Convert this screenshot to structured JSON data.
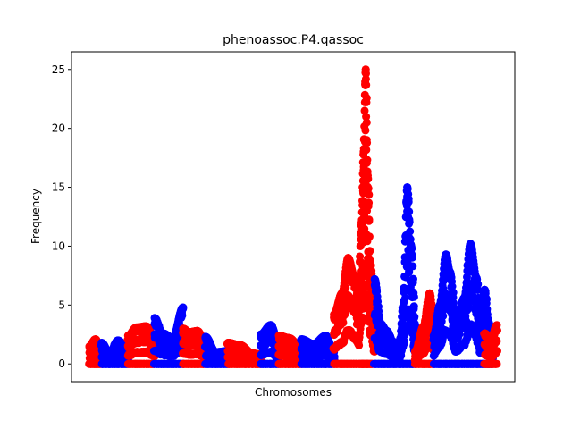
{
  "chart_data": {
    "type": "scatter",
    "title": "phenoassoc.P4.qassoc",
    "xlabel": "Chromosomes",
    "ylabel": "Frequency",
    "xlim": [
      0,
      100
    ],
    "ylim": [
      -1.5,
      26.5
    ],
    "y_ticks": [
      0,
      5,
      10,
      15,
      20,
      25
    ],
    "y_tick_labels": [
      "0",
      "5",
      "10",
      "15",
      "20",
      "25"
    ],
    "x_ticks_shown": false,
    "grid": false,
    "legend": "none",
    "colors": {
      "odd": "#ff0000",
      "even": "#0000ff"
    },
    "series": [
      {
        "color": "#ff0000",
        "x": [
          0.0,
          1.5,
          3.0
        ],
        "y": [
          1.5,
          2.1,
          0.9
        ]
      },
      {
        "color": "#0000ff",
        "x": [
          3.0,
          5.0,
          7.0,
          9.5
        ],
        "y": [
          1.8,
          0.9,
          2.0,
          1.2
        ]
      },
      {
        "color": "#ff0000",
        "x": [
          9.5,
          11.5,
          14.0,
          16.0
        ],
        "y": [
          2.4,
          3.1,
          3.2,
          2.2
        ]
      },
      {
        "color": "#0000ff",
        "x": [
          16.0,
          18.0,
          20.5,
          23.0
        ],
        "y": [
          3.9,
          2.6,
          2.2,
          4.8
        ]
      },
      {
        "color": "#ff0000",
        "x": [
          23.0,
          24.5,
          26.5,
          28.5
        ],
        "y": [
          3.0,
          2.7,
          2.8,
          1.8
        ]
      },
      {
        "color": "#0000ff",
        "x": [
          28.5,
          31.0,
          34.0
        ],
        "y": [
          2.3,
          1.0,
          1.1
        ]
      },
      {
        "color": "#ff0000",
        "x": [
          34.0,
          37.0,
          40.0,
          42.0
        ],
        "y": [
          1.8,
          1.6,
          0.9,
          0.8
        ]
      },
      {
        "color": "#0000ff",
        "x": [
          42.0,
          44.5,
          46.5
        ],
        "y": [
          2.5,
          3.3,
          1.6
        ]
      },
      {
        "color": "#ff0000",
        "x": [
          46.5,
          49.0,
          52.0
        ],
        "y": [
          2.4,
          2.2,
          1.3
        ]
      },
      {
        "color": "#0000ff",
        "x": [
          52.0,
          55.0,
          58.0,
          60.0
        ],
        "y": [
          2.1,
          1.7,
          2.4,
          1.0
        ]
      },
      {
        "color": "#ff0000",
        "x": [
          60.0,
          62.0,
          63.5,
          65.0,
          66.0,
          66.8,
          67.3,
          67.8,
          68.3,
          69.0,
          70.0
        ],
        "y": [
          4.2,
          6.0,
          9.0,
          7.5,
          5.5,
          12.0,
          18.0,
          25.0,
          16.0,
          8.5,
          3.5
        ]
      },
      {
        "color": "#0000ff",
        "x": [
          70.0,
          71.5,
          73.0,
          74.5,
          76.0,
          77.0,
          78.0,
          79.0,
          80.0
        ],
        "y": [
          7.2,
          3.4,
          2.8,
          1.9,
          1.3,
          4.9,
          15.0,
          10.0,
          3.2
        ]
      },
      {
        "color": "#ff0000",
        "x": [
          80.0,
          82.0,
          83.5,
          84.5
        ],
        "y": [
          1.1,
          3.2,
          6.0,
          3.8
        ]
      },
      {
        "color": "#0000ff",
        "x": [
          84.5,
          86.0,
          87.5,
          88.5,
          90.0,
          92.0,
          93.5,
          95.0,
          96.0,
          97.0,
          98.0,
          99.0
        ],
        "y": [
          2.4,
          5.0,
          9.3,
          7.8,
          3.5,
          5.6,
          10.2,
          7.3,
          3.2,
          6.3,
          3.5,
          1.4
        ]
      },
      {
        "color": "#ff0000",
        "x": [
          97.0,
          98.5,
          100.0
        ],
        "y": [
          2.6,
          2.0,
          3.3
        ]
      }
    ]
  }
}
